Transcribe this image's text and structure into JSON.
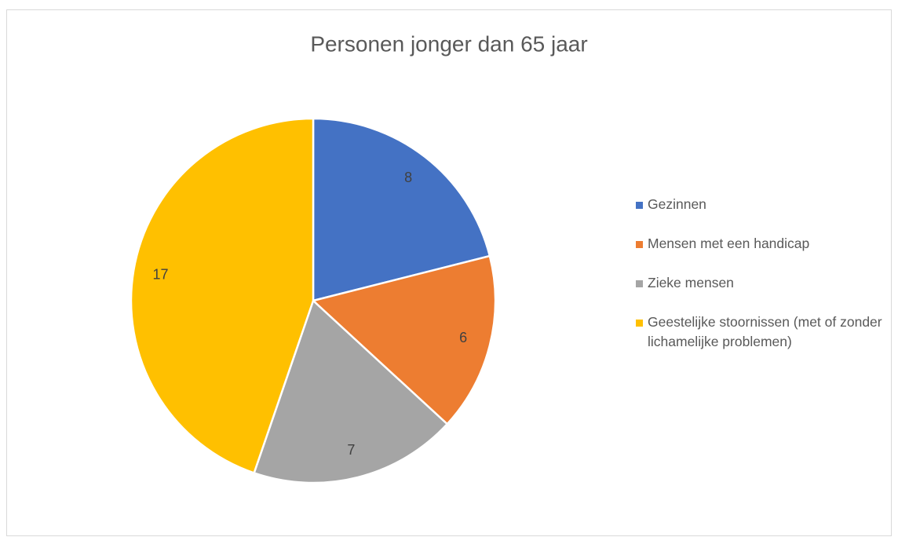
{
  "chart_data": {
    "type": "pie",
    "title": "Personen jonger dan 65 jaar",
    "categories": [
      "Gezinnen",
      "Mensen met een handicap",
      "Zieke mensen",
      "Geestelijke stoornissen (met of zonder lichamelijke problemen)"
    ],
    "values": [
      8,
      6,
      7,
      17
    ],
    "colors": [
      "#4472c4",
      "#ed7d31",
      "#a5a5a5",
      "#ffc000"
    ],
    "legend": "right"
  }
}
